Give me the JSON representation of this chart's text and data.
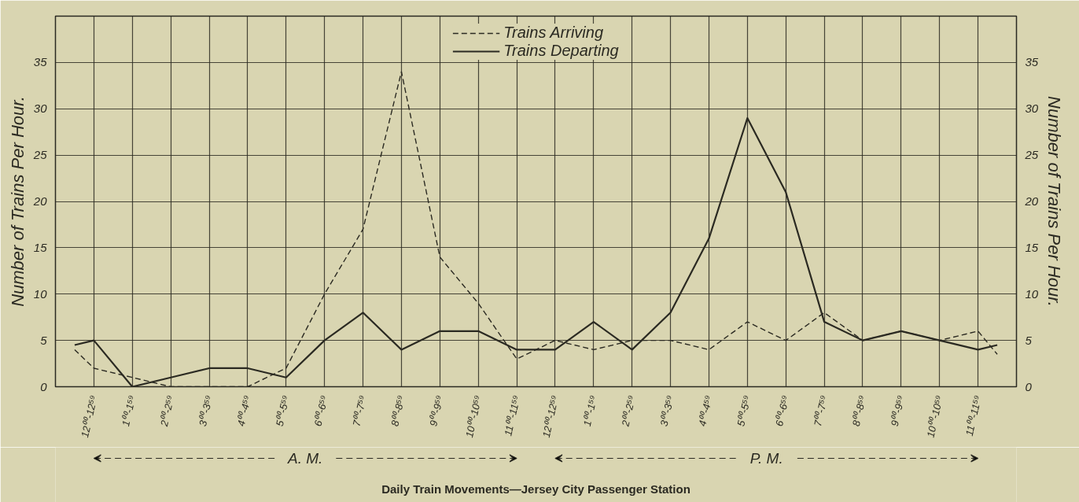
{
  "chart_data": {
    "type": "line",
    "annotations": [
      "A. M.",
      "P. M.",
      "Daily Train Movements—Jersey City Passenger Station"
    ],
    "ylabel": "Number of Trains Per Hour.",
    "y2label": "Number of Trains Per Hour.",
    "categories": [
      null,
      "12⁰⁰-12⁵⁹",
      null,
      "1⁰⁰-1⁵⁹",
      null,
      "2⁰⁰-2⁵⁹",
      null,
      "3⁰⁰-3⁵⁹",
      null,
      "4⁰⁰-4⁵⁹",
      null,
      "5⁰⁰-5⁵⁹",
      null,
      "6⁰⁰-6⁵⁹",
      null,
      "7⁰⁰-7⁵⁹",
      null,
      "8⁰⁰-8⁵⁹",
      null,
      "9⁰⁰-9⁵⁹",
      null,
      "10⁰⁰-10⁵⁹",
      null,
      "11⁰⁰-11⁵⁹",
      null,
      "12⁰⁰-12⁵⁹",
      null,
      "1⁰⁰-1⁵⁹",
      null,
      "2⁰⁰-2⁵⁹",
      null,
      "3⁰⁰-3⁵⁹",
      null,
      "4⁰⁰-4⁵⁹",
      null,
      "5⁰⁰-5⁵⁹",
      null,
      "6⁰⁰-6⁵⁹",
      null,
      "7⁰⁰-7⁵⁹",
      null,
      "8⁰⁰-8⁵⁹",
      null,
      "9⁰⁰-9⁵⁹",
      null,
      "10⁰⁰-10⁵⁹",
      null,
      "11⁰⁰-11⁵⁹",
      null
    ],
    "series": [
      {
        "name": "Trains Arriving",
        "color": "#2b2a22",
        "line_style": "dashed",
        "values": [
          4,
          2,
          null,
          1,
          null,
          0,
          null,
          0,
          null,
          0,
          null,
          2,
          null,
          10,
          null,
          17,
          null,
          34,
          null,
          14,
          null,
          9,
          null,
          3,
          null,
          5,
          null,
          4,
          null,
          5,
          null,
          5,
          null,
          4,
          null,
          7,
          null,
          5,
          null,
          8,
          null,
          5,
          null,
          6,
          null,
          5,
          null,
          6,
          3.5
        ]
      },
      {
        "name": "Trains Departing",
        "color": "#2b2a22",
        "line_style": "solid",
        "values": [
          4.5,
          5,
          null,
          0,
          null,
          1,
          null,
          2,
          null,
          2,
          null,
          1,
          null,
          5,
          null,
          8,
          null,
          4,
          null,
          6,
          null,
          6,
          null,
          4,
          null,
          4,
          null,
          7,
          null,
          4,
          null,
          8,
          null,
          16,
          null,
          29,
          null,
          21,
          null,
          7,
          null,
          5,
          null,
          6,
          null,
          5,
          null,
          4,
          4.5
        ]
      }
    ],
    "ylim": [
      0,
      40
    ],
    "yticks": [
      0,
      5,
      10,
      15,
      20,
      25,
      30,
      35
    ],
    "y2lim": [
      0,
      40
    ],
    "y2ticks": [
      0,
      5,
      10,
      15,
      20,
      25,
      30,
      35
    ],
    "grid": true,
    "legend": "top"
  }
}
